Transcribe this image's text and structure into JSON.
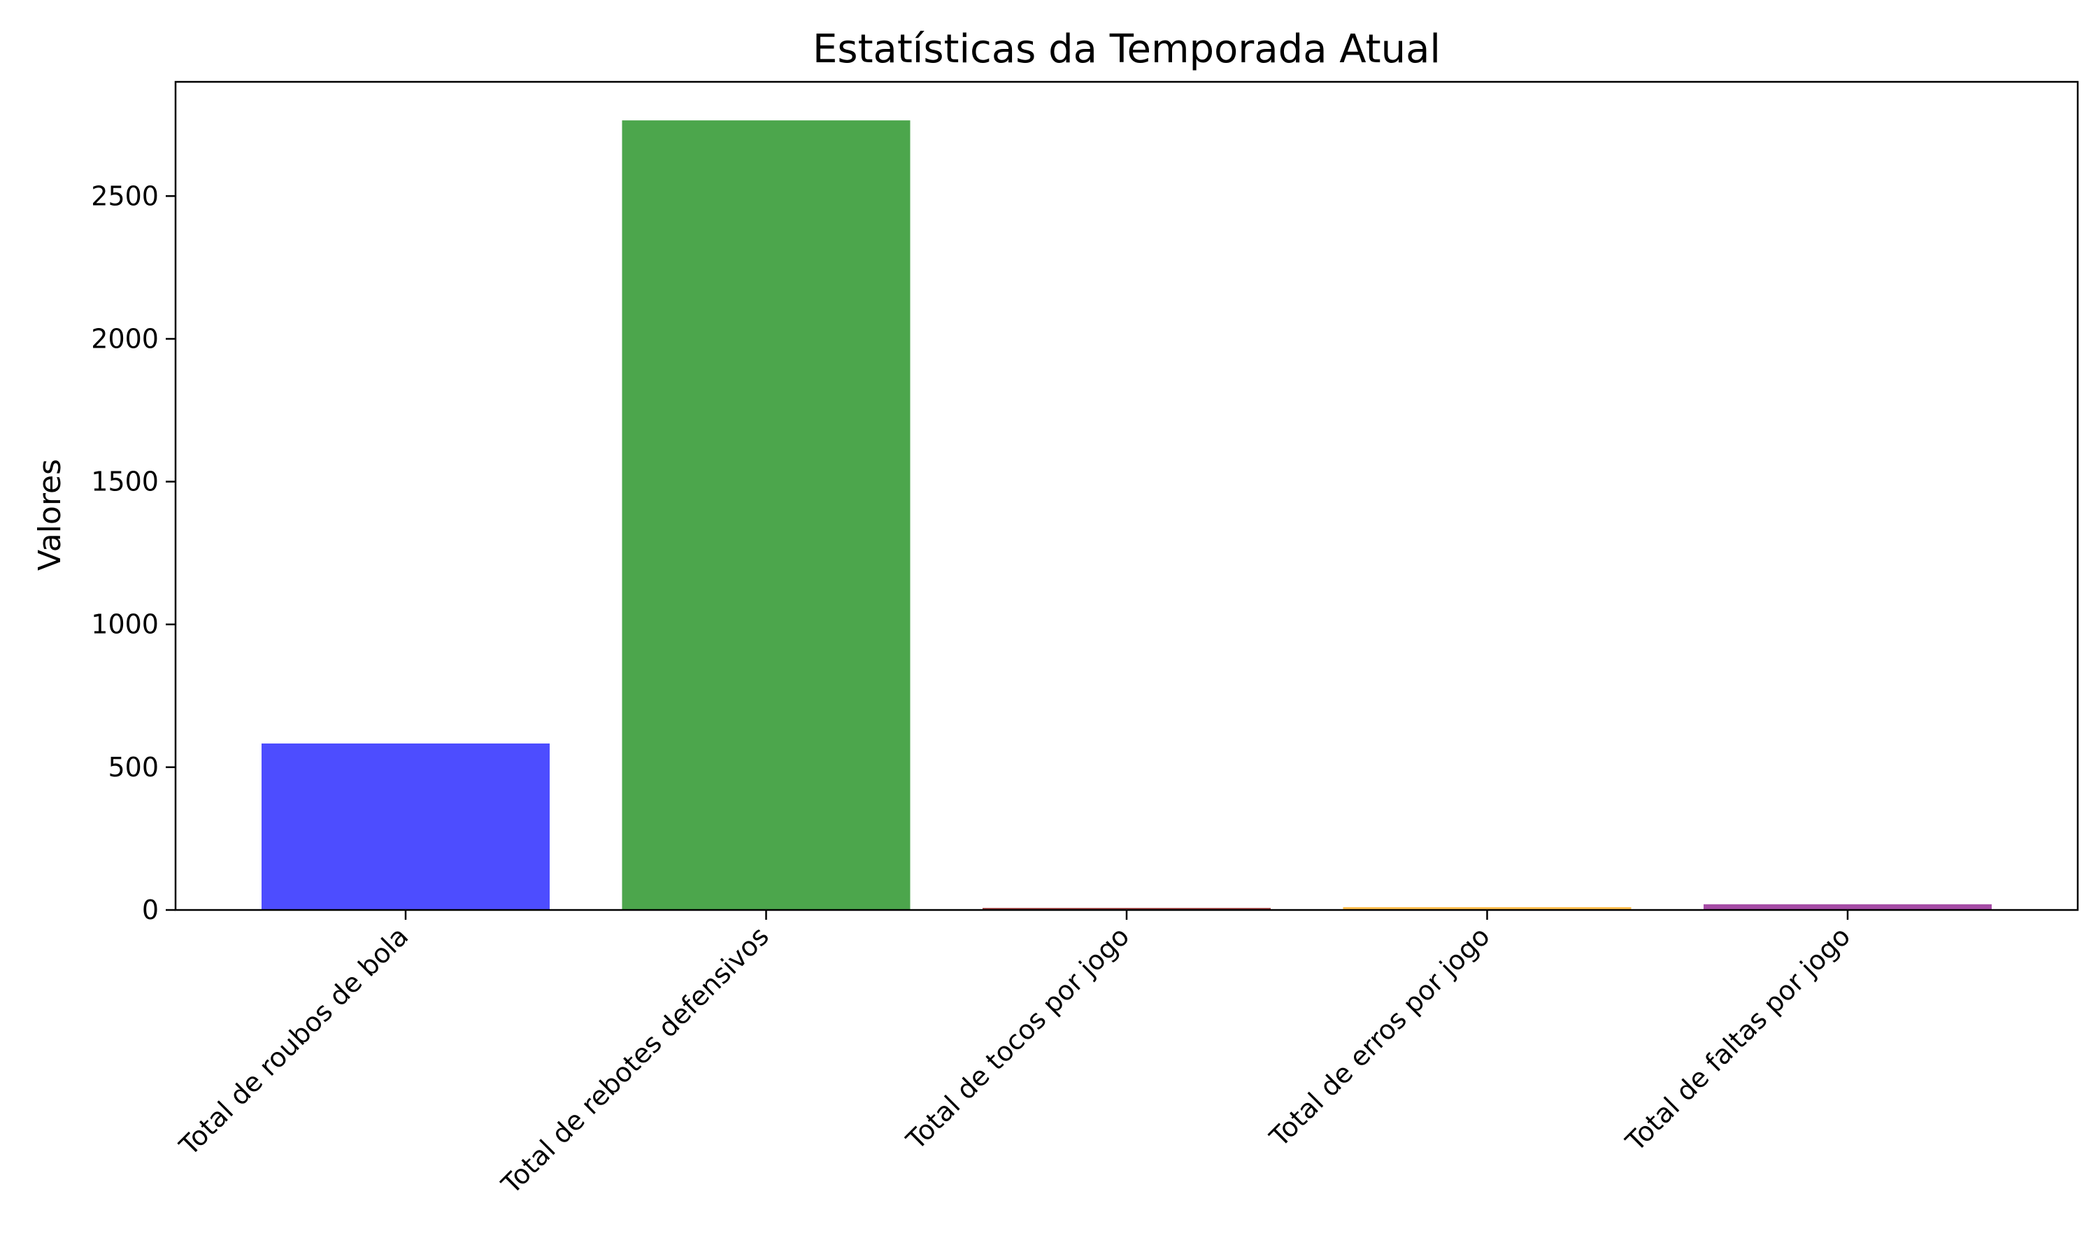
{
  "chart_data": {
    "type": "bar",
    "title": "Estatísticas da Temporada Atual",
    "xlabel": "",
    "ylabel": "Valores",
    "categories": [
      "Total de roubos de bola",
      "Total de rebotes defensivos",
      "Total de tocos por jogo",
      "Total de erros por jogo",
      "Total de faltas por jogo"
    ],
    "values": [
      583,
      2765,
      3,
      10,
      20
    ],
    "colors": [
      "#4d4dff",
      "#4ca64c",
      "#a64c4c",
      "#ffbf4d",
      "#a64ca6"
    ],
    "ylim": [
      0,
      2900
    ],
    "yticks": [
      0,
      500,
      1000,
      1500,
      2000,
      2500
    ],
    "grid": false,
    "legend": "none"
  }
}
